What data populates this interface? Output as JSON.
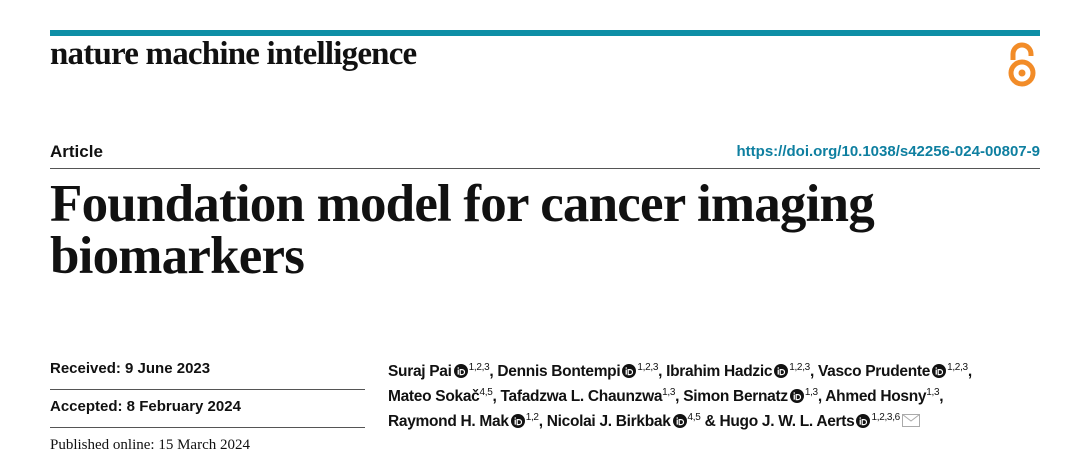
{
  "header": {
    "journal": "nature machine intelligence",
    "article_type": "Article",
    "doi": "https://doi.org/10.1038/s42256-024-00807-9"
  },
  "title": "Foundation model for cancer imaging biomarkers",
  "dates": {
    "received": "Received: 9 June 2023",
    "accepted": "Accepted: 8 February 2024",
    "published": "Published online: 15 March 2024"
  },
  "authors": [
    {
      "name": "Suraj Pai",
      "sup": "1,2,3",
      "sep": ", "
    },
    {
      "name": "Dennis Bontempi",
      "sup": "1,2,3",
      "sep": ", "
    },
    {
      "name": "Ibrahim Hadzic",
      "sup": "1,2,3",
      "sep": ", "
    },
    {
      "name": "Vasco Prudente",
      "sup": "1,2,3",
      "sep": ","
    },
    {
      "name": "Mateo Sokač",
      "sup": "4,5",
      "sep": ", "
    },
    {
      "name": "Tafadzwa L. Chaunzwa",
      "sup": "1,3",
      "sep": ", "
    },
    {
      "name": "Simon Bernatz",
      "sup": "1,3",
      "sep": ", "
    },
    {
      "name": "Ahmed Hosny",
      "sup": "1,3",
      "sep": ","
    },
    {
      "name": "Raymond H. Mak",
      "sup": "1,2",
      "sep": ", "
    },
    {
      "name": "Nicolai J. Birkbak",
      "sup": "4,5",
      "sep": " & "
    },
    {
      "name": "Hugo J. W. L. Aerts",
      "sup": "1,2,3,6"
    }
  ]
}
